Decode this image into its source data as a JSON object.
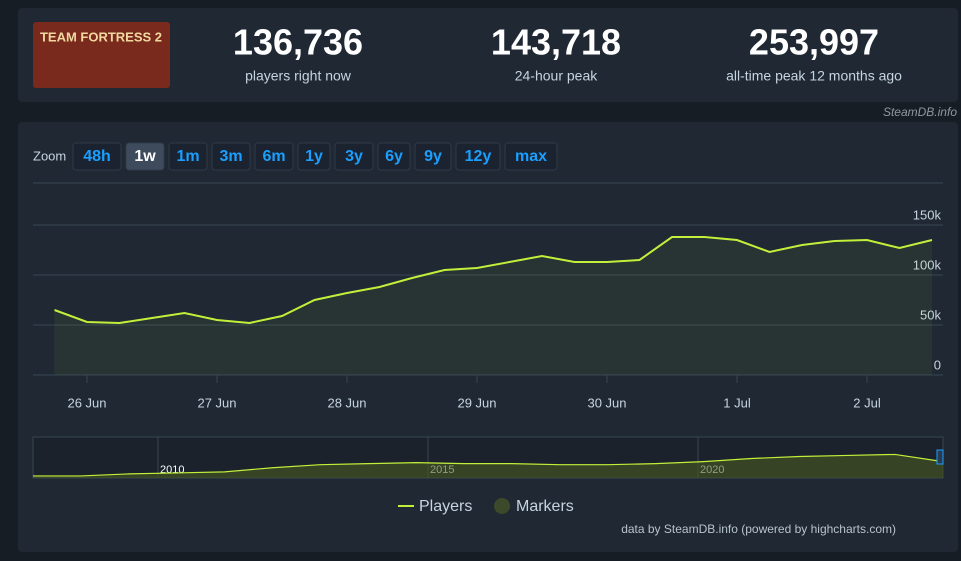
{
  "header": {
    "logo_text": "TEAM FORTRESS 2",
    "stats": [
      {
        "value": "136,736",
        "label": "players right now"
      },
      {
        "value": "143,718",
        "label": "24-hour peak"
      },
      {
        "value": "253,997",
        "label": "all-time peak 12 months ago"
      }
    ]
  },
  "source": "SteamDB.info",
  "zoom": {
    "label": "Zoom",
    "buttons": [
      "48h",
      "1w",
      "1m",
      "3m",
      "6m",
      "1y",
      "3y",
      "6y",
      "9y",
      "12y",
      "max"
    ],
    "active": "1w"
  },
  "chart_data": {
    "type": "line",
    "categories": [
      null,
      "26 Jun",
      null,
      null,
      null,
      "27 Jun",
      null,
      null,
      null,
      "28 Jun",
      null,
      null,
      null,
      "29 Jun",
      null,
      null,
      null,
      "30 Jun",
      null,
      null,
      null,
      "1 Jul",
      null,
      null,
      null,
      "2 Jul",
      null,
      null
    ],
    "series": [
      {
        "name": "Players",
        "color": "#c2f03a",
        "values": [
          65000,
          53000,
          52000,
          57000,
          62000,
          55000,
          52000,
          59000,
          75000,
          82000,
          88000,
          97000,
          105000,
          107000,
          113000,
          119000,
          113000,
          113000,
          115000,
          138000,
          138000,
          135000,
          123000,
          130000,
          134000,
          135000,
          127000,
          135000
        ]
      }
    ],
    "markers": {
      "name": "Markers",
      "color": "#3d4a2a"
    },
    "ylim": [
      0,
      192000
    ],
    "yticks": [
      {
        "value": 0,
        "label": "0"
      },
      {
        "value": 50000,
        "label": "50k"
      },
      {
        "value": 100000,
        "label": "100k"
      },
      {
        "value": 150000,
        "label": "150k"
      }
    ],
    "grid": true,
    "navigator": {
      "labels": [
        "2010",
        "2015",
        "2020"
      ],
      "ylim": [
        0,
        260000
      ],
      "values": [
        13000,
        13000,
        26000,
        32000,
        39000,
        65000,
        84500,
        91000,
        97500,
        91000,
        91000,
        84500,
        84500,
        91000,
        104000,
        123500,
        136500,
        143000,
        149500,
        104000
      ]
    },
    "credit": "data by SteamDB.info (powered by highcharts.com)"
  }
}
